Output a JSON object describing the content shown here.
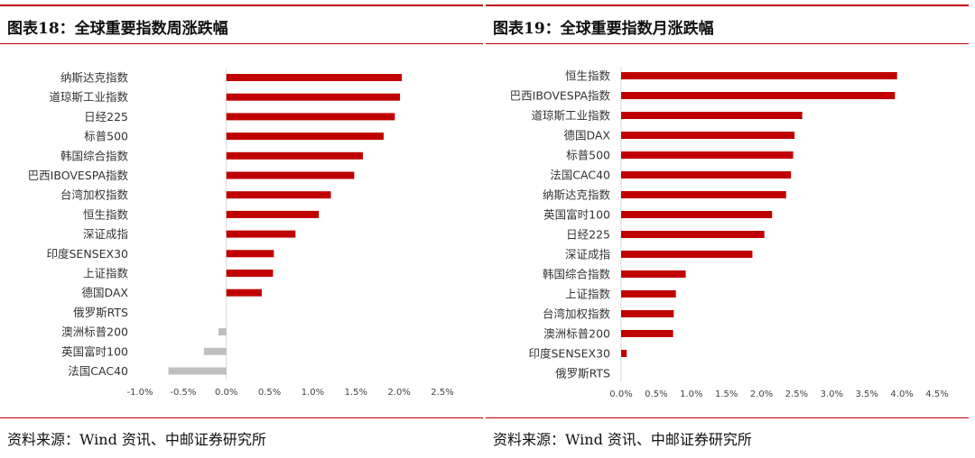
{
  "chart_data": [
    {
      "type": "bar",
      "orientation": "horizontal",
      "title": "图表18：全球重要指数周涨跌幅",
      "source": "资料来源：Wind 资讯、中邮证券研究所",
      "categories": [
        "纳斯达克指数",
        "道琼斯工业指数",
        "日经225",
        "标普500",
        "韩国综合指数",
        "巴西IBOVESPA指数",
        "台湾加权指数",
        "恒生指数",
        "深证成指",
        "印度SENSEX30",
        "上证指数",
        "德国DAX",
        "俄罗斯RTS",
        "澳洲标普200",
        "英国富时100",
        "法国CAC40"
      ],
      "values": [
        2.03,
        2.01,
        1.95,
        1.82,
        1.58,
        1.48,
        1.21,
        1.07,
        0.8,
        0.55,
        0.54,
        0.41,
        0.0,
        -0.09,
        -0.26,
        -0.67
      ],
      "xlim": [
        -1.0,
        2.5
      ],
      "xticks": [
        "-1.0%",
        "-0.5%",
        "0.0%",
        "0.5%",
        "1.0%",
        "1.5%",
        "2.0%",
        "2.5%"
      ],
      "xtick_values": [
        -1.0,
        -0.5,
        0.0,
        0.5,
        1.0,
        1.5,
        2.0,
        2.5
      ],
      "grid": false,
      "colors": {
        "positive": "#c00000",
        "negative": "#bfbfbf"
      }
    },
    {
      "type": "bar",
      "orientation": "horizontal",
      "title": "图表19：全球重要指数月涨跌幅",
      "source": "资料来源：Wind 资讯、中邮证券研究所",
      "categories": [
        "恒生指数",
        "巴西IBOVESPA指数",
        "道琼斯工业指数",
        "德国DAX",
        "标普500",
        "法国CAC40",
        "纳斯达克指数",
        "英国富时100",
        "日经225",
        "深证成指",
        "韩国综合指数",
        "上证指数",
        "台湾加权指数",
        "澳洲标普200",
        "印度SENSEX30",
        "俄罗斯RTS"
      ],
      "values": [
        3.93,
        3.9,
        2.58,
        2.47,
        2.45,
        2.42,
        2.35,
        2.15,
        2.04,
        1.87,
        0.92,
        0.78,
        0.75,
        0.74,
        0.08,
        0.0
      ],
      "xlim": [
        0.0,
        4.5
      ],
      "xticks": [
        "0.0%",
        "0.5%",
        "1.0%",
        "1.5%",
        "2.0%",
        "2.5%",
        "3.0%",
        "3.5%",
        "4.0%",
        "4.5%"
      ],
      "xtick_values": [
        0.0,
        0.5,
        1.0,
        1.5,
        2.0,
        2.5,
        3.0,
        3.5,
        4.0,
        4.5
      ],
      "grid": false,
      "colors": {
        "positive": "#c00000",
        "negative": "#bfbfbf"
      }
    }
  ]
}
